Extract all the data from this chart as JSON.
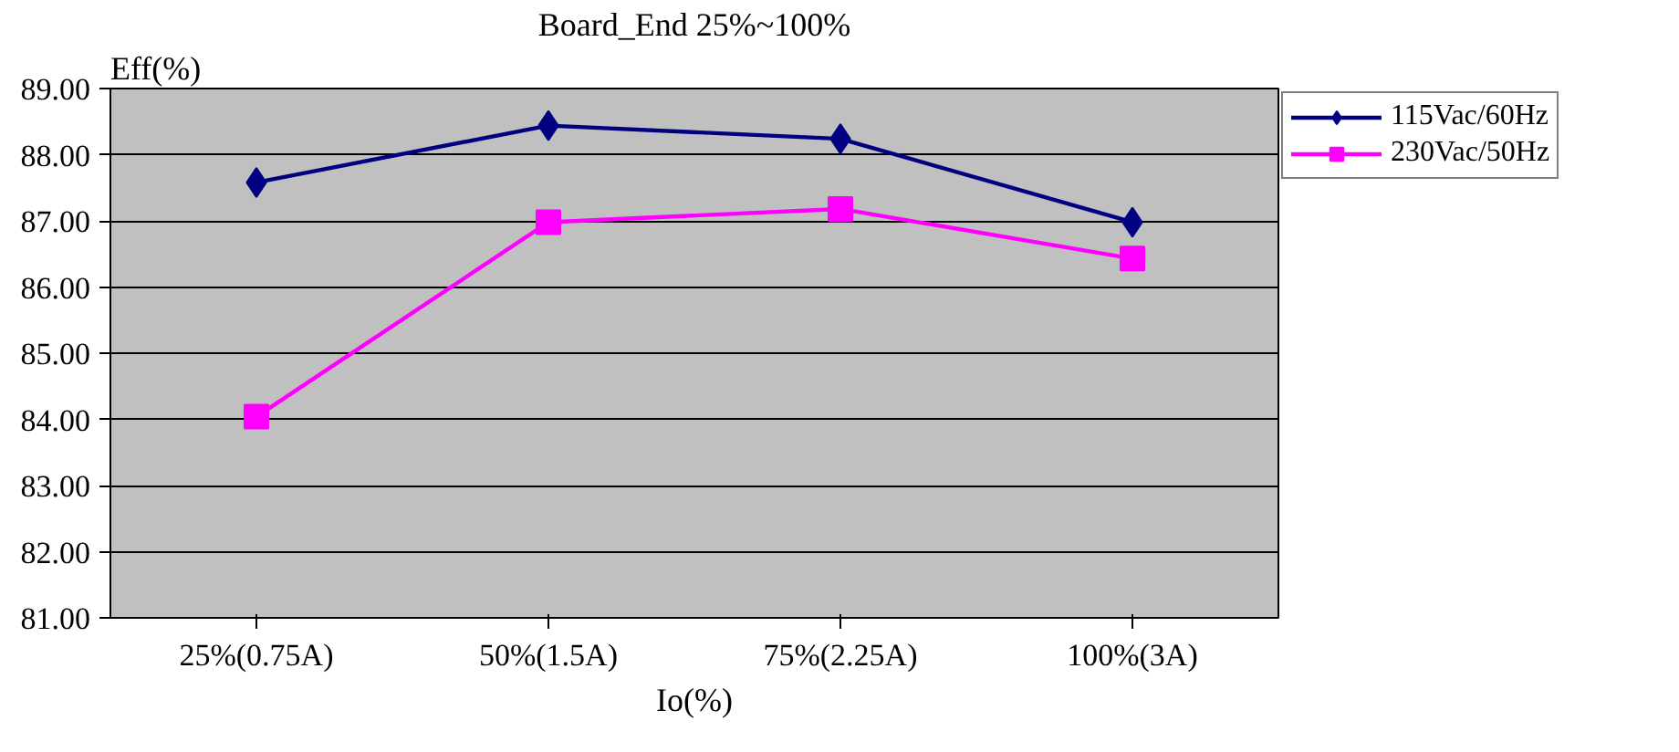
{
  "chart_data": {
    "type": "line",
    "title": "Board_End 25%~100%",
    "ylabel": "Eff(%)",
    "xlabel": "Io(%)",
    "categories": [
      "25%(0.75A)",
      "50%(1.5A)",
      "75%(2.25A)",
      "100%(3A)"
    ],
    "series": [
      {
        "name": "115Vac/60Hz",
        "color": "#000080",
        "marker": "diamond",
        "values": [
          87.58,
          88.44,
          88.24,
          86.98
        ]
      },
      {
        "name": "230Vac/50Hz",
        "color": "#ff00ff",
        "marker": "square",
        "values": [
          84.04,
          86.98,
          87.18,
          86.43
        ]
      }
    ],
    "ylim": [
      81,
      89
    ],
    "yticks": [
      {
        "value": 81,
        "label": "81.00"
      },
      {
        "value": 82,
        "label": "82.00"
      },
      {
        "value": 83,
        "label": "83.00"
      },
      {
        "value": 84,
        "label": "84.00"
      },
      {
        "value": 85,
        "label": "85.00"
      },
      {
        "value": 86,
        "label": "86.00"
      },
      {
        "value": 87,
        "label": "87.00"
      },
      {
        "value": 88,
        "label": "88.00"
      },
      {
        "value": 89,
        "label": "89.00"
      }
    ],
    "grid": "y",
    "legend": "top right",
    "line_style": "solid"
  }
}
